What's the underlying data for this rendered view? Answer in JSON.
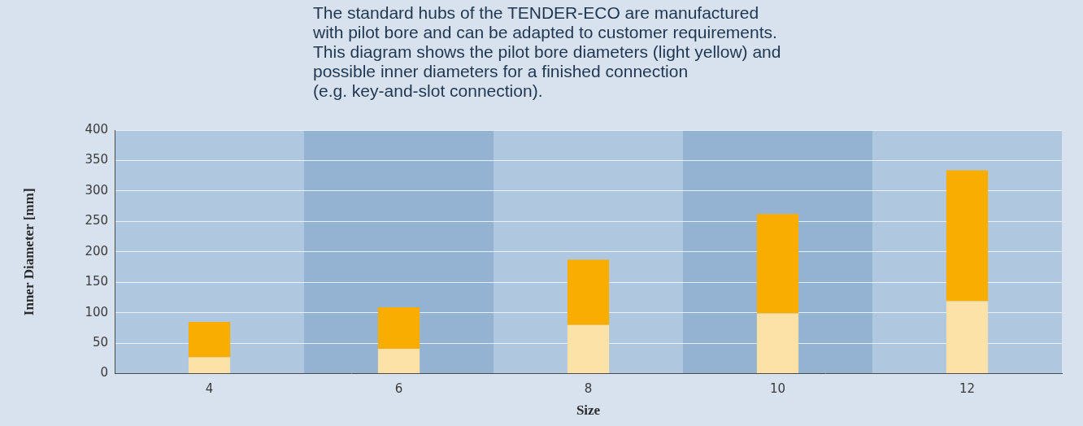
{
  "chart_data": {
    "type": "bar",
    "subtitle": "The standard hubs of the TENDER-ECO are manufactured\nwith pilot bore and can be adapted to customer requirements.\nThis diagram shows the pilot bore diameters (light yellow) and\npossible inner diameters for a finished connection\n(e.g. key-and-slot connection).",
    "categories": [
      "4",
      "6",
      "8",
      "10",
      "12"
    ],
    "series": [
      {
        "color": "#fde2a7",
        "values": [
          27,
          41,
          80,
          99,
          119
        ]
      },
      {
        "color": "#f8ad00",
        "values": [
          58,
          68,
          107,
          163,
          215
        ]
      }
    ],
    "stacked": true,
    "x_label": "Size",
    "y_label": "Inner Diameter [mm]",
    "ylim": [
      0,
      400
    ],
    "yticks": [
      0,
      50,
      100,
      150,
      200,
      250,
      300,
      350,
      400
    ],
    "grid": true
  }
}
